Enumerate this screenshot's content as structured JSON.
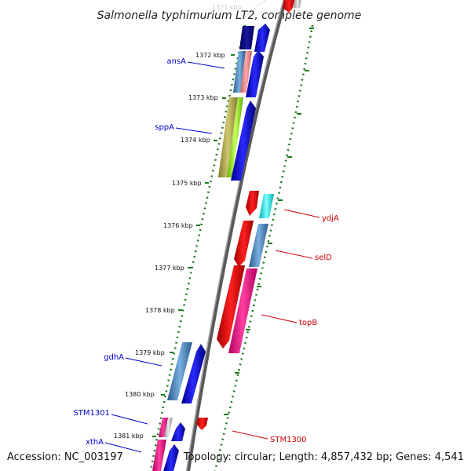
{
  "title": "Salmonella typhimurium LT2, complete genome",
  "footer": {
    "accession": "Accession: NC_003197",
    "topology": "Topology: circular; Length: 4,857,432 bp; Genes: 4,541"
  },
  "ticks": [
    "1372 kbp",
    "1373 kbp",
    "1374 kbp",
    "1375 kbp",
    "1376 kbp",
    "1377 kbp",
    "1378 kbp",
    "1379 kbp",
    "1380 kbp",
    "1381 kbp"
  ],
  "gene_labels_left": [
    "ansA",
    "sppA",
    "gdhA",
    "STM1301",
    "xthA"
  ],
  "gene_labels_right": [
    "ydjA",
    "selD",
    "topB",
    "STM1300"
  ],
  "colors": {
    "left_label": "#0000cc",
    "right_label": "#cc0000",
    "backbone": "#888888",
    "tick_mark": "#1a7a1a",
    "forward_cds": "#0000ee",
    "reverse_cds": "#ee0000"
  }
}
